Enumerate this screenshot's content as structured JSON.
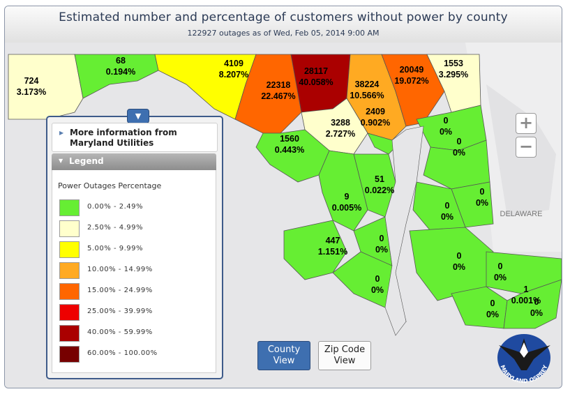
{
  "header": {
    "title": "Estimated number and percentage of customers without power by county",
    "subtitle": "122927 outages as of Wed, Feb 05, 2014 9:00 AM"
  },
  "map": {
    "neighbor_label": "DELAWARE",
    "counties": [
      {
        "count": "724",
        "pct": "3.173%",
        "color": "#ffffcc"
      },
      {
        "count": "68",
        "pct": "0.194%",
        "color": "#66ee33"
      },
      {
        "count": "4109",
        "pct": "8.207%",
        "color": "#ffff00"
      },
      {
        "count": "22318",
        "pct": "22.467%",
        "color": "#ff6600"
      },
      {
        "count": "28117",
        "pct": "40.058%",
        "color": "#aa0000"
      },
      {
        "count": "38224",
        "pct": "10.566%",
        "color": "#ffaa22"
      },
      {
        "count": "20049",
        "pct": "19.072%",
        "color": "#ff6600"
      },
      {
        "count": "1553",
        "pct": "3.295%",
        "color": "#ffffcc"
      },
      {
        "count": "3288",
        "pct": "2.727%",
        "color": "#ffffcc"
      },
      {
        "count": "2409",
        "pct": "0.902%",
        "color": "#66ee33"
      },
      {
        "count": "1560",
        "pct": "0.443%",
        "color": "#66ee33"
      },
      {
        "count": "51",
        "pct": "0.022%",
        "color": "#66ee33"
      },
      {
        "count": "9",
        "pct": "0.005%",
        "color": "#66ee33"
      },
      {
        "count": "447",
        "pct": "1.151%",
        "color": "#66ee33"
      },
      {
        "count": "0",
        "pct": "0%",
        "color": "#66ee33"
      },
      {
        "count": "0",
        "pct": "0%",
        "color": "#66ee33"
      },
      {
        "count": "0",
        "pct": "0%",
        "color": "#66ee33"
      },
      {
        "count": "0",
        "pct": "0%",
        "color": "#66ee33"
      },
      {
        "count": "0",
        "pct": "0%",
        "color": "#66ee33"
      },
      {
        "count": "0",
        "pct": "0%",
        "color": "#66ee33"
      },
      {
        "count": "0",
        "pct": "0%",
        "color": "#66ee33"
      },
      {
        "count": "0",
        "pct": "0%",
        "color": "#66ee33"
      },
      {
        "count": "0",
        "pct": "0%",
        "color": "#66ee33"
      },
      {
        "count": "0",
        "pct": "0%",
        "color": "#66ee33"
      },
      {
        "count": "1",
        "pct": "0.001%",
        "color": "#66ee33"
      }
    ]
  },
  "zoom": {
    "in_label": "+",
    "out_label": "−"
  },
  "panel": {
    "toggle_icon": "chevron-down-icon",
    "toggle_glyph": "▼",
    "more_info": "More information from Maryland Utilities",
    "legend_title": "Legend",
    "legend_subtitle": "Power Outages Percentage",
    "legend": [
      {
        "range": "0.00% - 2.49%",
        "color": "#66ee33"
      },
      {
        "range": "2.50% - 4.99%",
        "color": "#ffffcc"
      },
      {
        "range": "5.00% - 9.99%",
        "color": "#ffff00"
      },
      {
        "range": "10.00% - 14.99%",
        "color": "#ffaa22"
      },
      {
        "range": "15.00% - 24.99%",
        "color": "#ff6600"
      },
      {
        "range": "25.00% - 39.99%",
        "color": "#ee0000"
      },
      {
        "range": "40.00% - 59.99%",
        "color": "#aa0000"
      },
      {
        "range": "60.00% - 100.00%",
        "color": "#770000"
      }
    ]
  },
  "view_buttons": {
    "county": {
      "line1": "County",
      "line2": "View"
    },
    "zip": {
      "line1": "Zip Code",
      "line2": "View"
    }
  },
  "logo": {
    "text": "MARYLAND OSPREY",
    "icon": "osprey-logo-icon"
  }
}
